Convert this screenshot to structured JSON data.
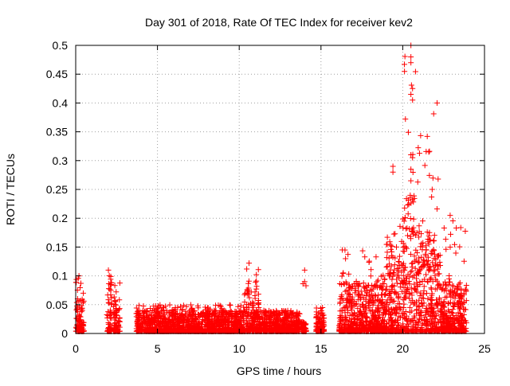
{
  "chart_data": {
    "type": "scatter",
    "title": "Day 301 of 2018, Rate Of TEC Index for receiver kev2",
    "xlabel": "GPS time / hours",
    "ylabel": "ROTI / TECUs",
    "xlim": [
      0,
      25
    ],
    "ylim": [
      0,
      0.5
    ],
    "grid": true,
    "marker": "+",
    "marker_color": "#ff0000",
    "x_ticks": [
      0,
      5,
      10,
      15,
      20,
      25
    ],
    "x_tick_labels": [
      "0",
      "5",
      "10",
      "15",
      "20",
      "25"
    ],
    "y_ticks": [
      0,
      0.05,
      0.1,
      0.15,
      0.2,
      0.25,
      0.3,
      0.35,
      0.4,
      0.45,
      0.5
    ],
    "y_tick_labels": [
      "0",
      "0.05",
      "0.1",
      "0.15",
      "0.2",
      "0.25",
      "0.3",
      "0.35",
      "0.4",
      "0.45",
      "0.5"
    ],
    "activity_profile": [
      {
        "x_start": 0.0,
        "x_end": 0.5,
        "typical_max": 0.06,
        "peak": 0.1
      },
      {
        "x_start": 1.9,
        "x_end": 2.2,
        "typical_max": 0.1,
        "peak": 0.11
      },
      {
        "x_start": 2.3,
        "x_end": 2.7,
        "typical_max": 0.07,
        "peak": 0.09
      },
      {
        "x_start": 3.7,
        "x_end": 10.3,
        "typical_max": 0.04,
        "peak": 0.05
      },
      {
        "x_start": 10.3,
        "x_end": 11.2,
        "typical_max": 0.08,
        "peak": 0.12
      },
      {
        "x_start": 11.2,
        "x_end": 13.7,
        "typical_max": 0.035,
        "peak": 0.04
      },
      {
        "x_start": 13.8,
        "x_end": 14.1,
        "typical_max": 0.02,
        "peak": 0.11
      },
      {
        "x_start": 14.7,
        "x_end": 15.2,
        "typical_max": 0.04,
        "peak": 0.045
      },
      {
        "x_start": 16.1,
        "x_end": 19.0,
        "typical_max": 0.09,
        "peak": 0.145
      },
      {
        "x_start": 19.0,
        "x_end": 20.0,
        "typical_max": 0.16,
        "peak": 0.29
      },
      {
        "x_start": 20.0,
        "x_end": 20.8,
        "typical_max": 0.24,
        "peak": 0.5
      },
      {
        "x_start": 20.8,
        "x_end": 22.3,
        "typical_max": 0.18,
        "peak": 0.4
      },
      {
        "x_start": 22.3,
        "x_end": 23.9,
        "typical_max": 0.09,
        "peak": 0.2
      }
    ],
    "notable_points": [
      {
        "x": 0.2,
        "y": 0.1
      },
      {
        "x": 2.0,
        "y": 0.11
      },
      {
        "x": 10.6,
        "y": 0.122
      },
      {
        "x": 14.0,
        "y": 0.11
      },
      {
        "x": 14.0,
        "y": 0.09
      },
      {
        "x": 16.3,
        "y": 0.145
      },
      {
        "x": 19.4,
        "y": 0.29
      },
      {
        "x": 19.4,
        "y": 0.28
      },
      {
        "x": 20.5,
        "y": 0.5
      },
      {
        "x": 20.5,
        "y": 0.48
      },
      {
        "x": 20.5,
        "y": 0.47
      },
      {
        "x": 20.6,
        "y": 0.425
      },
      {
        "x": 20.5,
        "y": 0.415
      },
      {
        "x": 20.6,
        "y": 0.405
      },
      {
        "x": 20.5,
        "y": 0.31
      },
      {
        "x": 20.6,
        "y": 0.305
      },
      {
        "x": 20.5,
        "y": 0.285
      },
      {
        "x": 20.5,
        "y": 0.265
      },
      {
        "x": 21.5,
        "y": 0.342
      },
      {
        "x": 22.1,
        "y": 0.4
      },
      {
        "x": 21.8,
        "y": 0.25
      },
      {
        "x": 22.9,
        "y": 0.205
      }
    ]
  }
}
